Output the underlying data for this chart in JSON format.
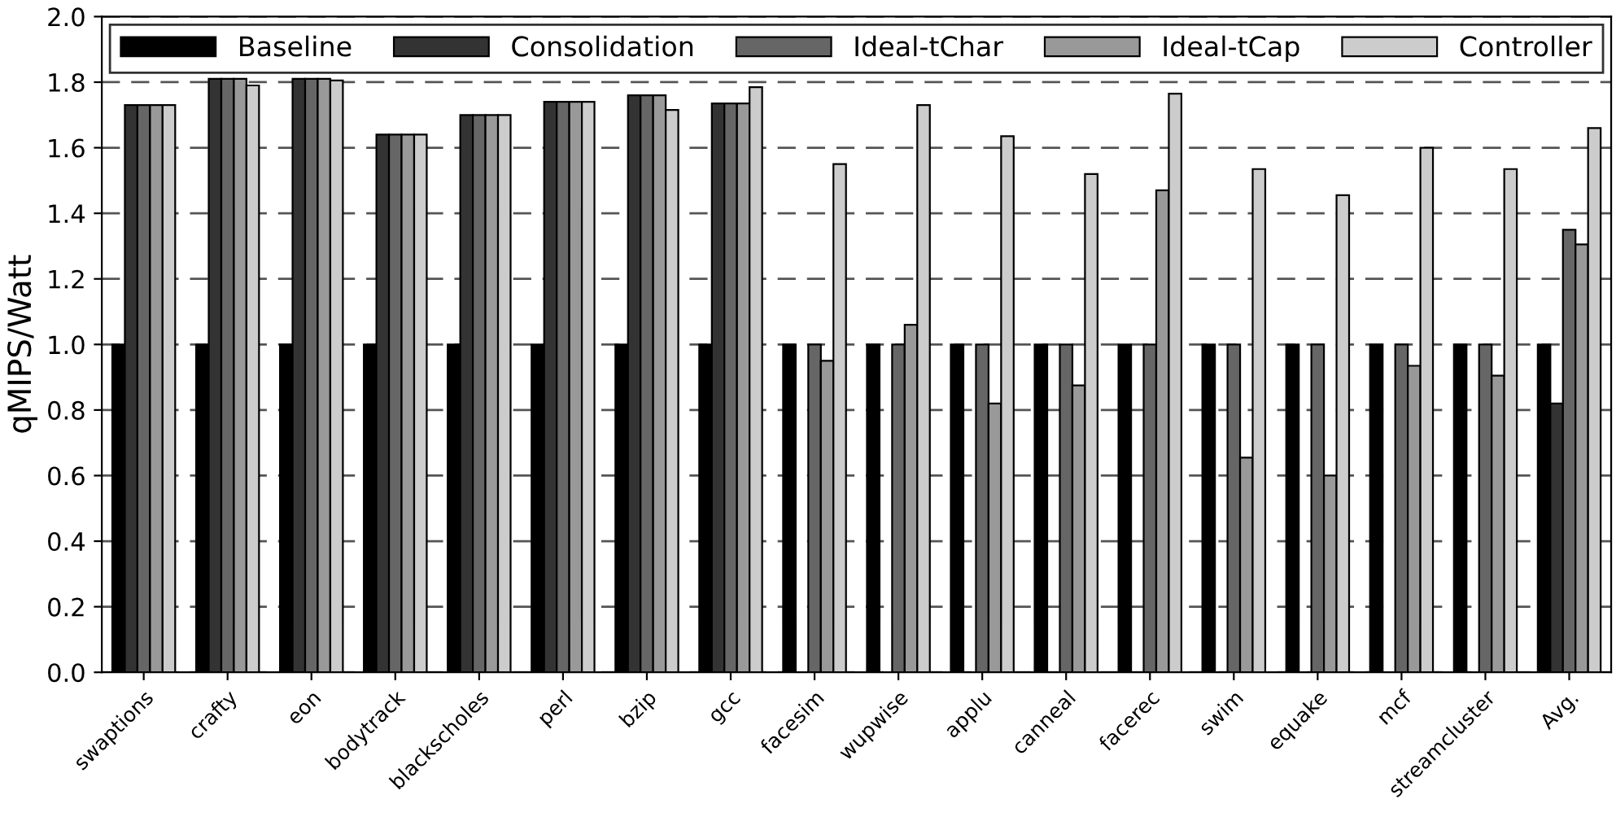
{
  "chart_data": {
    "type": "bar",
    "ylabel": "qMIPS/Watt",
    "categories": [
      "swaptions",
      "crafty",
      "eon",
      "bodytrack",
      "blackscholes",
      "perl",
      "bzip",
      "gcc",
      "facesim",
      "wupwise",
      "applu",
      "canneal",
      "facerec",
      "swim",
      "equake",
      "mcf",
      "streamcluster",
      "Avg."
    ],
    "series": [
      {
        "name": "Baseline",
        "color": "#000000",
        "values": [
          1.0,
          1.0,
          1.0,
          1.0,
          1.0,
          1.0,
          1.0,
          1.0,
          1.0,
          1.0,
          1.0,
          1.0,
          1.0,
          1.0,
          1.0,
          1.0,
          1.0,
          1.0
        ]
      },
      {
        "name": "Consolidation",
        "color": "#333333",
        "values": [
          1.73,
          1.81,
          1.81,
          1.64,
          1.7,
          1.74,
          1.76,
          1.735,
          null,
          null,
          null,
          null,
          null,
          null,
          null,
          null,
          null,
          0.82
        ]
      },
      {
        "name": "Ideal-tChar",
        "color": "#666666",
        "values": [
          1.73,
          1.81,
          1.81,
          1.64,
          1.7,
          1.74,
          1.76,
          1.735,
          1.0,
          1.0,
          1.0,
          1.0,
          1.0,
          1.0,
          1.0,
          1.0,
          1.0,
          1.35
        ]
      },
      {
        "name": "Ideal-tCap",
        "color": "#999999",
        "values": [
          1.73,
          1.81,
          1.81,
          1.64,
          1.7,
          1.74,
          1.76,
          1.735,
          0.95,
          1.06,
          0.82,
          0.875,
          1.47,
          0.655,
          0.6,
          0.935,
          0.905,
          1.305
        ]
      },
      {
        "name": "Controller",
        "color": "#cccccc",
        "values": [
          1.73,
          1.79,
          1.805,
          1.64,
          1.7,
          1.74,
          1.715,
          1.785,
          1.55,
          1.73,
          1.635,
          1.52,
          1.765,
          1.535,
          1.455,
          1.6,
          1.535,
          1.66
        ]
      }
    ],
    "ylim": [
      0.0,
      2.0
    ],
    "yticks": [
      {
        "value": 0,
        "label": "0.0"
      },
      {
        "value": 0.2,
        "label": "0.2"
      },
      {
        "value": 0.4,
        "label": "0.4"
      },
      {
        "value": 0.6,
        "label": "0.6"
      },
      {
        "value": 0.8,
        "label": "0.8"
      },
      {
        "value": 1.0,
        "label": "1.0"
      },
      {
        "value": 1.2,
        "label": "1.2"
      },
      {
        "value": 1.4,
        "label": "1.4"
      },
      {
        "value": 1.6,
        "label": "1.6"
      },
      {
        "value": 1.8,
        "label": "1.8"
      },
      {
        "value": 2.0,
        "label": "2.0"
      }
    ],
    "grid": "y",
    "legend": "top"
  }
}
